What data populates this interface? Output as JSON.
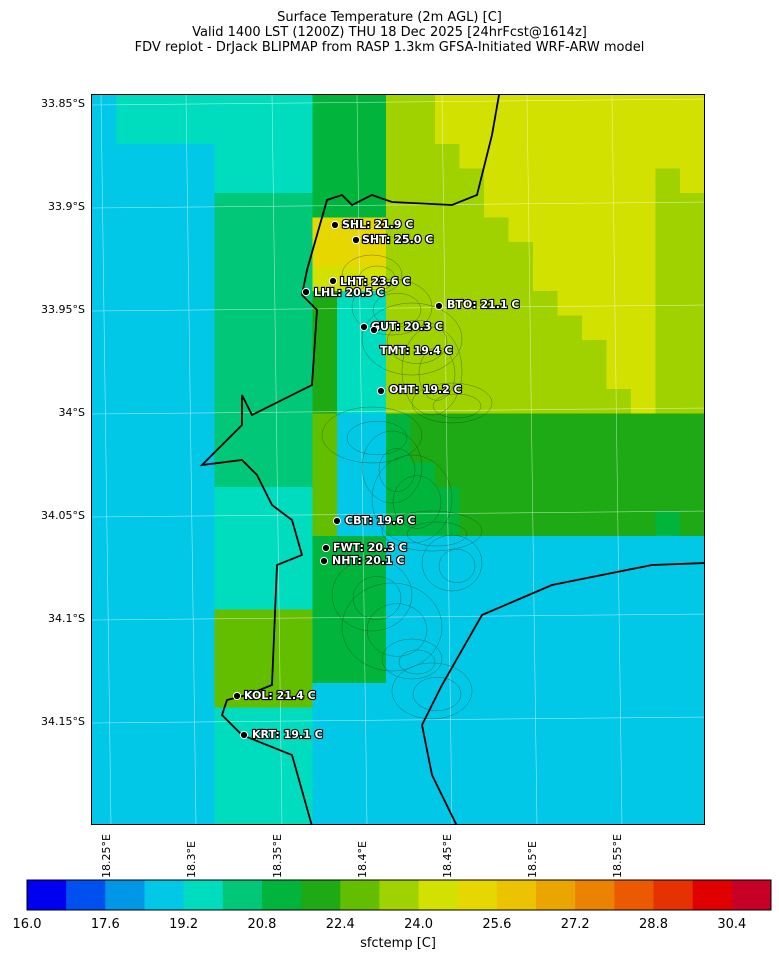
{
  "title": {
    "line1": "Surface Temperature (2m AGL) [C]",
    "line2": "Valid 1400 LST (1200Z) THU 18 Dec 2025 [24hrFcst@1614z]",
    "line3": "FDV replot - DrJack BLIPMAP from RASP 1.3km GFSA-Initiated WRF-ARW model"
  },
  "axes": {
    "lat_labels": [
      "33.85°S",
      "33.9°S",
      "33.95°S",
      "34°S",
      "34.05°S",
      "34.1°S",
      "34.15°S"
    ],
    "lon_labels": [
      "18.25°E",
      "18.3°E",
      "18.35°E",
      "18.4°E",
      "18.45°E",
      "18.5°E",
      "18.55°E"
    ]
  },
  "stations": [
    {
      "code": "SHL",
      "label": "SHL: 21.9 C",
      "temp_c": 21.9
    },
    {
      "code": "SHT",
      "label": "SHT: 25.0 C",
      "temp_c": 25.0
    },
    {
      "code": "LHT",
      "label": "LHT: 23.6 C",
      "temp_c": 23.6
    },
    {
      "code": "LHL",
      "label": "LHL: 20.5 C",
      "temp_c": 20.5
    },
    {
      "code": "BTO",
      "label": "BTO: 21.1 C",
      "temp_c": 21.1
    },
    {
      "code": "GUT",
      "label": "GUT: 20.3 C",
      "temp_c": 20.3
    },
    {
      "code": "TMT",
      "label": "TMT: 19.4 C",
      "temp_c": 19.4
    },
    {
      "code": "OHT",
      "label": "OHT: 19.2 C",
      "temp_c": 19.2
    },
    {
      "code": "CBT",
      "label": "CBT: 19.6 C",
      "temp_c": 19.6
    },
    {
      "code": "FWT",
      "label": "FWT: 20.3 C",
      "temp_c": 20.3
    },
    {
      "code": "NHT",
      "label": "NHT: 20.1 C",
      "temp_c": 20.1
    },
    {
      "code": "KOL",
      "label": "KOL: 21.4 C",
      "temp_c": 21.4
    },
    {
      "code": "KRT",
      "label": "KRT: 19.1 C",
      "temp_c": 19.1
    }
  ],
  "colorbar": {
    "label": "sfctemp [C]",
    "min": 16.0,
    "max": 31.2,
    "step": 0.8,
    "tick_labels": [
      "16.0",
      "17.6",
      "19.2",
      "20.8",
      "22.4",
      "24.0",
      "25.6",
      "27.2",
      "28.8",
      "30.4"
    ],
    "colors": [
      "#0000f0",
      "#0050f0",
      "#0096e6",
      "#00c8e6",
      "#00dcbe",
      "#00c878",
      "#00b43c",
      "#1eaa14",
      "#64be00",
      "#a0d200",
      "#d2e100",
      "#e6d700",
      "#ebc300",
      "#eba500",
      "#eb8200",
      "#eb5a00",
      "#e63200",
      "#e00000",
      "#c80028"
    ]
  }
}
